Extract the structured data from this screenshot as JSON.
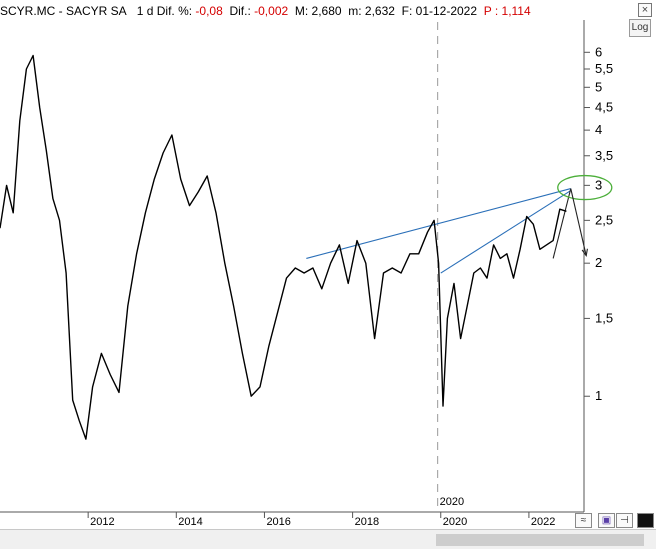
{
  "header": {
    "symbol": "SCYR.MC - SACYR SA",
    "period": "1 d",
    "dif_pct_label": "Dif. %:",
    "dif_pct_value": "-0,08",
    "dif_label": "Dif.:",
    "dif_value": "-0,002",
    "max_label": "M:",
    "max_value": "2,680",
    "min_label": "m:",
    "min_value": "2,632",
    "date_label": "F:",
    "date_value": "01-12-2022",
    "p_label": "P :",
    "p_value": "1,114"
  },
  "controls": {
    "log_button": "Log",
    "close_glyph": "×"
  },
  "colors": {
    "price": "#000000",
    "trendline": "#2a6fb8",
    "ellipse": "#4caf3a",
    "arrow": "#222222",
    "marker_line": "#9a9a9a",
    "negative": "#d40000"
  },
  "chart_data": {
    "type": "line",
    "y_scale": "log",
    "ylim": [
      0.66,
      6.6
    ],
    "y_ticks": [
      {
        "value": 6,
        "label": "6"
      },
      {
        "value": 5.5,
        "label": "5,5"
      },
      {
        "value": 5,
        "label": "5"
      },
      {
        "value": 4.5,
        "label": "4,5"
      },
      {
        "value": 4,
        "label": "4"
      },
      {
        "value": 3.5,
        "label": "3,5"
      },
      {
        "value": 3,
        "label": "3"
      },
      {
        "value": 2.5,
        "label": "2,5"
      },
      {
        "value": 2,
        "label": "2"
      },
      {
        "value": 1.5,
        "label": "1,5"
      },
      {
        "value": 1,
        "label": "1"
      }
    ],
    "x_ticks": [
      "2012",
      "2014",
      "2016",
      "2018",
      "2020",
      "2022"
    ],
    "x_marker": {
      "x": 2019.93,
      "label": "2020"
    },
    "series": [
      {
        "x": [
          2010.0,
          2010.15,
          2010.3,
          2010.45,
          2010.6,
          2010.75,
          2010.9,
          2011.05,
          2011.2,
          2011.35,
          2011.5,
          2011.65,
          2011.8,
          2011.95,
          2012.1,
          2012.3,
          2012.5,
          2012.7,
          2012.9,
          2013.1,
          2013.3,
          2013.5,
          2013.7,
          2013.9,
          2014.1,
          2014.3,
          2014.5,
          2014.7,
          2014.9,
          2015.1,
          2015.3,
          2015.5,
          2015.7,
          2015.9,
          2016.1,
          2016.3,
          2016.5,
          2016.7,
          2016.9,
          2017.1,
          2017.3,
          2017.5,
          2017.7,
          2017.9,
          2018.1,
          2018.3,
          2018.5,
          2018.7,
          2018.9,
          2019.1,
          2019.3,
          2019.5,
          2019.7,
          2019.85,
          2019.95,
          2020.05,
          2020.15,
          2020.3,
          2020.45,
          2020.6,
          2020.75,
          2020.9,
          2021.05,
          2021.2,
          2021.35,
          2021.5,
          2021.65,
          2021.8,
          2021.95,
          2022.1,
          2022.25,
          2022.4,
          2022.55,
          2022.7,
          2022.85
        ],
        "values": [
          2.4,
          3.0,
          2.6,
          4.2,
          5.5,
          5.9,
          4.5,
          3.6,
          2.8,
          2.5,
          1.9,
          0.98,
          0.88,
          0.8,
          1.05,
          1.25,
          1.12,
          1.02,
          1.6,
          2.1,
          2.6,
          3.1,
          3.55,
          3.9,
          3.1,
          2.7,
          2.9,
          3.15,
          2.6,
          2.0,
          1.6,
          1.25,
          1.0,
          1.05,
          1.3,
          1.55,
          1.85,
          1.95,
          1.9,
          1.95,
          1.75,
          2.0,
          2.2,
          1.8,
          2.25,
          2.0,
          1.35,
          1.9,
          1.95,
          1.9,
          2.1,
          2.1,
          2.35,
          2.5,
          2.0,
          0.95,
          1.5,
          1.8,
          1.35,
          1.6,
          1.9,
          1.95,
          1.85,
          2.2,
          2.05,
          2.1,
          1.85,
          2.15,
          2.55,
          2.45,
          2.15,
          2.2,
          2.25,
          2.65,
          2.62
        ]
      }
    ],
    "annotations": {
      "trendline_1": {
        "x": [
          2016.95,
          2022.95
        ],
        "y": [
          2.05,
          2.95
        ]
      },
      "trendline_2": {
        "x": [
          2020.0,
          2022.95
        ],
        "y": [
          1.9,
          2.92
        ]
      },
      "ellipse_center": {
        "x": 2022.95,
        "y": 2.95
      },
      "arrow": {
        "x": [
          2022.95,
          2023.3
        ],
        "y": [
          2.95,
          2.08
        ]
      },
      "rise_line": {
        "x": [
          2022.55,
          2022.95
        ],
        "y": [
          2.05,
          2.95
        ]
      }
    },
    "grid": false,
    "legend": "none"
  }
}
